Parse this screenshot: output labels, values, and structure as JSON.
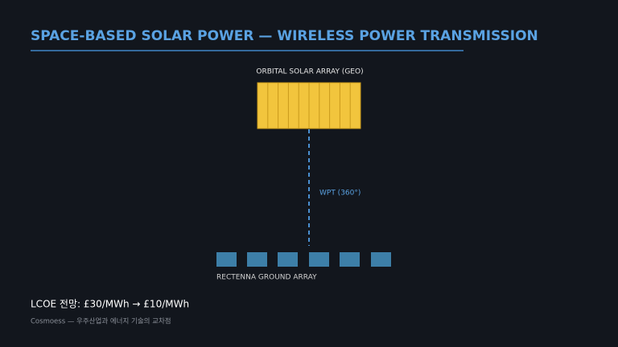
{
  "header": {
    "title": "SPACE-BASED SOLAR POWER — WIRELESS POWER TRANSMISSION"
  },
  "diagram": {
    "space_label": "ORBITAL SOLAR ARRAY (GEO)",
    "beam_label": "WPT (360°)",
    "ground_label": "RECTENNA GROUND ARRAY"
  },
  "footer": {
    "note": "LCOE 전망: £30/MWh → £10/MWh",
    "credit": "Cosmoess — 우주산업과 에너지 기술의 교차점"
  }
}
